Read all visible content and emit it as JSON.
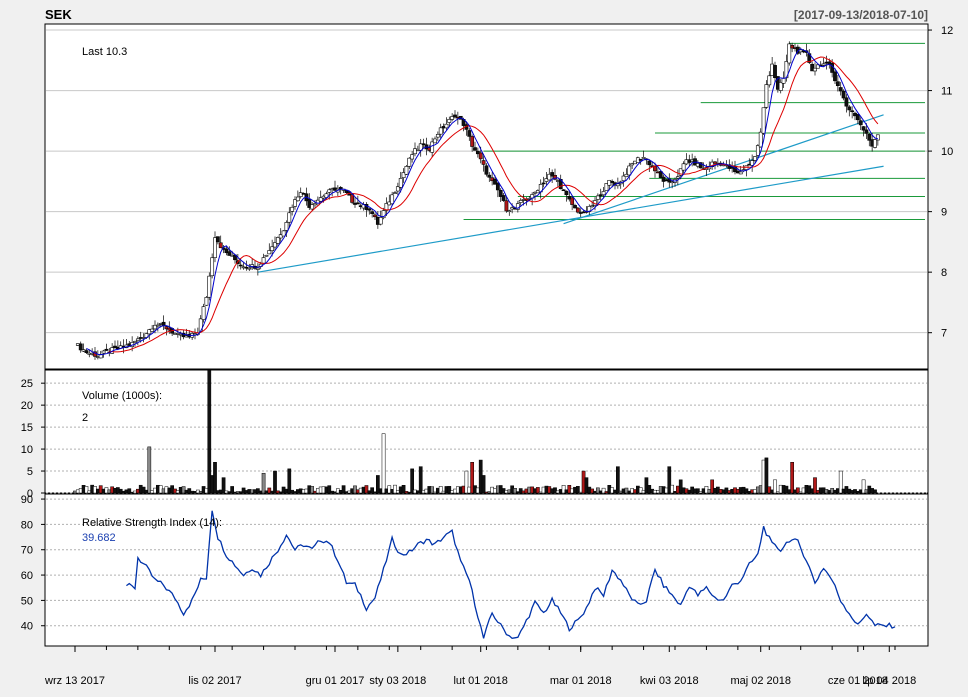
{
  "chart_data": {
    "type": "candlestick",
    "title": "SEK",
    "date_range": "[2017-09-13/2018-07-10]",
    "x_tick_labels": [
      "wrz 13 2017",
      "lis 02 2017",
      "gru 01 2017",
      "sty 03 2018",
      "lut 01 2018",
      "mar 01 2018",
      "kwi 03 2018",
      "maj 02 2018",
      "cze 01 2018",
      "lip 04 2018"
    ],
    "price_panel": {
      "annotation": "Last 10.3",
      "ylim": [
        6.4,
        12.1
      ],
      "y_ticks": [
        7,
        8,
        9,
        10,
        11,
        12
      ],
      "close_points": [
        [
          0,
          6.82
        ],
        [
          4,
          6.68
        ],
        [
          8,
          6.62
        ],
        [
          12,
          6.7
        ],
        [
          16,
          6.75
        ],
        [
          20,
          6.82
        ],
        [
          24,
          6.95
        ],
        [
          28,
          7.15
        ],
        [
          32,
          7.08
        ],
        [
          36,
          6.95
        ],
        [
          40,
          6.92
        ],
        [
          43,
          7.02
        ],
        [
          46,
          7.6
        ],
        [
          49,
          8.6
        ],
        [
          52,
          8.35
        ],
        [
          55,
          8.25
        ],
        [
          58,
          8.12
        ],
        [
          61,
          8.1
        ],
        [
          64,
          8.1
        ],
        [
          67,
          8.3
        ],
        [
          70,
          8.5
        ],
        [
          73,
          8.72
        ],
        [
          76,
          9.1
        ],
        [
          79,
          9.35
        ],
        [
          82,
          9.1
        ],
        [
          85,
          9.2
        ],
        [
          88,
          9.3
        ],
        [
          91,
          9.38
        ],
        [
          94,
          9.35
        ],
        [
          97,
          9.18
        ],
        [
          100,
          9.1
        ],
        [
          103,
          9.05
        ],
        [
          106,
          8.8
        ],
        [
          109,
          9.1
        ],
        [
          112,
          9.35
        ],
        [
          115,
          9.65
        ],
        [
          118,
          9.95
        ],
        [
          121,
          10.1
        ],
        [
          124,
          10.05
        ],
        [
          127,
          10.3
        ],
        [
          130,
          10.45
        ],
        [
          133,
          10.6
        ],
        [
          136,
          10.45
        ],
        [
          139,
          10.1
        ],
        [
          142,
          9.85
        ],
        [
          145,
          9.55
        ],
        [
          148,
          9.35
        ],
        [
          151,
          9.05
        ],
        [
          154,
          9.05
        ],
        [
          157,
          9.2
        ],
        [
          160,
          9.25
        ],
        [
          163,
          9.45
        ],
        [
          166,
          9.6
        ],
        [
          169,
          9.5
        ],
        [
          172,
          9.25
        ],
        [
          175,
          9.05
        ],
        [
          178,
          8.95
        ],
        [
          181,
          9.1
        ],
        [
          184,
          9.3
        ],
        [
          187,
          9.5
        ],
        [
          190,
          9.45
        ],
        [
          193,
          9.65
        ],
        [
          196,
          9.85
        ],
        [
          199,
          9.9
        ],
        [
          202,
          9.75
        ],
        [
          205,
          9.55
        ],
        [
          208,
          9.45
        ],
        [
          211,
          9.6
        ],
        [
          214,
          9.85
        ],
        [
          217,
          9.8
        ],
        [
          220,
          9.7
        ],
        [
          223,
          9.8
        ],
        [
          226,
          9.8
        ],
        [
          229,
          9.72
        ],
        [
          232,
          9.62
        ],
        [
          235,
          9.75
        ],
        [
          238,
          9.9
        ],
        [
          240,
          10.3
        ],
        [
          242,
          11.1
        ],
        [
          244,
          11.45
        ],
        [
          246,
          11.0
        ],
        [
          248,
          11.2
        ],
        [
          250,
          11.75
        ],
        [
          253,
          11.65
        ],
        [
          256,
          11.6
        ],
        [
          258,
          11.35
        ],
        [
          261,
          11.45
        ],
        [
          264,
          11.4
        ],
        [
          267,
          11.1
        ],
        [
          270,
          10.75
        ],
        [
          273,
          10.6
        ],
        [
          276,
          10.35
        ],
        [
          279,
          10.1
        ],
        [
          281,
          10.3
        ]
      ],
      "sma_fast_color": "#0000cc",
      "sma_slow_color": "#dd0000",
      "horizontal_levels": [
        11.78,
        10.8,
        10.3,
        10.0,
        9.55,
        9.25,
        8.87
      ],
      "trend_lines": [
        {
          "from": [
            64,
            8.0
          ],
          "to": [
            283,
            9.75
          ]
        },
        {
          "from": [
            171,
            8.8
          ],
          "to": [
            283,
            10.6
          ]
        }
      ]
    },
    "volume_panel": {
      "label": "Volume (1000s):",
      "last_value": "2",
      "ylim": [
        0,
        28
      ],
      "y_ticks": [
        0,
        5,
        10,
        15,
        20,
        25
      ],
      "spikes": [
        [
          26,
          10.5
        ],
        [
          47,
          28
        ],
        [
          48,
          4
        ],
        [
          49,
          7
        ],
        [
          52,
          3.5
        ],
        [
          66,
          4.5
        ],
        [
          70,
          5
        ],
        [
          75,
          5.5
        ],
        [
          106,
          4
        ],
        [
          108,
          13.5
        ],
        [
          118,
          5.5
        ],
        [
          121,
          6
        ],
        [
          137,
          5
        ],
        [
          139,
          7
        ],
        [
          142,
          7.5
        ],
        [
          143,
          4
        ],
        [
          178,
          5
        ],
        [
          179,
          3.5
        ],
        [
          190,
          6
        ],
        [
          200,
          3.5
        ],
        [
          208,
          6
        ],
        [
          212,
          3
        ],
        [
          223,
          3
        ],
        [
          241,
          7.5
        ],
        [
          242,
          8
        ],
        [
          245,
          3
        ],
        [
          251,
          7
        ],
        [
          259,
          3.5
        ],
        [
          268,
          5
        ],
        [
          276,
          3
        ]
      ]
    },
    "rsi_panel": {
      "label": "Relative Strength Index (14):",
      "last_value": "39.682",
      "color": "#0033aa",
      "ylim": [
        32,
        92
      ],
      "y_ticks": [
        40,
        50,
        60,
        70,
        80,
        90
      ],
      "points": [
        [
          18,
          56
        ],
        [
          21,
          55
        ],
        [
          22,
          67
        ],
        [
          25,
          63
        ],
        [
          28,
          58
        ],
        [
          31,
          56
        ],
        [
          35,
          51
        ],
        [
          38,
          45
        ],
        [
          41,
          50
        ],
        [
          44,
          58
        ],
        [
          46,
          59
        ],
        [
          47,
          73
        ],
        [
          48,
          86
        ],
        [
          50,
          75
        ],
        [
          53,
          68
        ],
        [
          56,
          64
        ],
        [
          59,
          60
        ],
        [
          62,
          63
        ],
        [
          65,
          60
        ],
        [
          68,
          65
        ],
        [
          71,
          70
        ],
        [
          74,
          76
        ],
        [
          77,
          70
        ],
        [
          80,
          72
        ],
        [
          83,
          70
        ],
        [
          86,
          74
        ],
        [
          89,
          73
        ],
        [
          92,
          66
        ],
        [
          95,
          57
        ],
        [
          98,
          56
        ],
        [
          100,
          52
        ],
        [
          102,
          47
        ],
        [
          105,
          51
        ],
        [
          108,
          62
        ],
        [
          111,
          74
        ],
        [
          114,
          68
        ],
        [
          117,
          69
        ],
        [
          120,
          72
        ],
        [
          123,
          74
        ],
        [
          126,
          72
        ],
        [
          129,
          75
        ],
        [
          132,
          77
        ],
        [
          135,
          65
        ],
        [
          138,
          58
        ],
        [
          141,
          44
        ],
        [
          143,
          35
        ],
        [
          146,
          45
        ],
        [
          149,
          40
        ],
        [
          152,
          36
        ],
        [
          155,
          35
        ],
        [
          158,
          42
        ],
        [
          161,
          49
        ],
        [
          164,
          45
        ],
        [
          167,
          50
        ],
        [
          170,
          45
        ],
        [
          173,
          39
        ],
        [
          176,
          42
        ],
        [
          179,
          47
        ],
        [
          182,
          55
        ],
        [
          185,
          52
        ],
        [
          188,
          62
        ],
        [
          191,
          58
        ],
        [
          194,
          52
        ],
        [
          197,
          48
        ],
        [
          200,
          50
        ],
        [
          203,
          62
        ],
        [
          206,
          56
        ],
        [
          209,
          52
        ],
        [
          212,
          48
        ],
        [
          215,
          56
        ],
        [
          218,
          52
        ],
        [
          221,
          55
        ],
        [
          224,
          51
        ],
        [
          227,
          50
        ],
        [
          230,
          56
        ],
        [
          233,
          58
        ],
        [
          236,
          64
        ],
        [
          239,
          68
        ],
        [
          241,
          79
        ],
        [
          244,
          72
        ],
        [
          247,
          70
        ],
        [
          250,
          74
        ],
        [
          253,
          73
        ],
        [
          256,
          66
        ],
        [
          259,
          57
        ],
        [
          262,
          63
        ],
        [
          265,
          58
        ],
        [
          268,
          50
        ],
        [
          271,
          45
        ],
        [
          274,
          40
        ],
        [
          277,
          45
        ],
        [
          280,
          40
        ],
        [
          287,
          40
        ]
      ]
    }
  }
}
